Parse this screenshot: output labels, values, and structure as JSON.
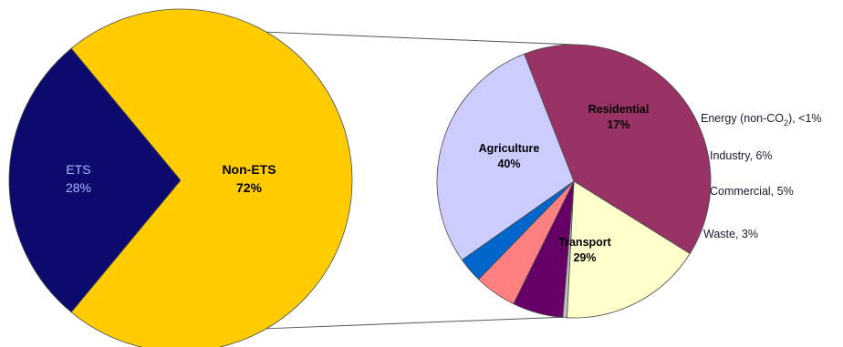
{
  "chart_data": [
    {
      "type": "pie",
      "slices": [
        {
          "label": "ETS",
          "value": 28,
          "value_label": "28%",
          "color": "#0d0a6e",
          "label_color": "#a8b8ff"
        },
        {
          "label": "Non-ETS",
          "value": 72,
          "value_label": "72%",
          "color": "#ffcc00",
          "label_color": "#000000"
        }
      ]
    },
    {
      "type": "pie",
      "slices": [
        {
          "label": "Agriculture",
          "value": 40,
          "value_label": "40%",
          "color": "#993366",
          "label_color": "#000000",
          "label_position": "inside"
        },
        {
          "label": "Residential",
          "value": 17,
          "value_label": "17%",
          "color": "#ffffcc",
          "label_color": "#000000",
          "label_position": "inside"
        },
        {
          "label": "Energy (non-CO",
          "label_subscript": "2",
          "label_suffix": "), <1%",
          "value": 0.5,
          "color": "#c0c0c0",
          "label_position": "outside"
        },
        {
          "label": "Industry, 6%",
          "value": 6,
          "color": "#660066",
          "label_position": "outside"
        },
        {
          "label": "Commercial, 5%",
          "value": 5,
          "color": "#ff8080",
          "label_position": "outside"
        },
        {
          "label": "Waste, 3%",
          "value": 3,
          "color": "#0066cc",
          "label_position": "outside"
        },
        {
          "label": "Transport",
          "value": 29,
          "value_label": "29%",
          "color": "#ccccff",
          "label_color": "#000000",
          "label_position": "inside"
        }
      ]
    }
  ]
}
